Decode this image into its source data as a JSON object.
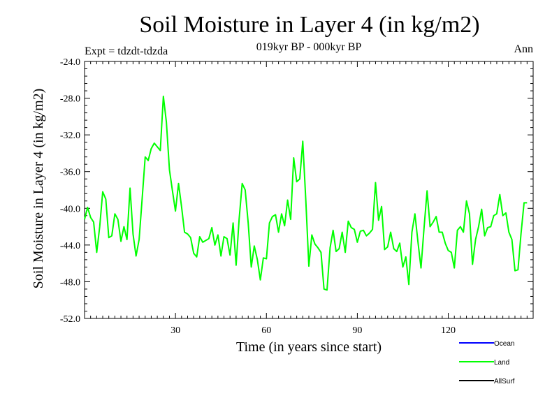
{
  "chart_data": {
    "type": "line",
    "title": "Soil Moisture in Layer 4 (in kg/m2)",
    "subtitle": "019kyr BP - 000kyr BP",
    "left_label": "Expt = tdzdt-tdzda",
    "right_label": "Ann",
    "xlabel": "Time (in years since start)",
    "ylabel": "Soil Moisture in Layer 4 (in kg/m2)",
    "xlim": [
      0,
      148
    ],
    "ylim": [
      -52.0,
      -24.0
    ],
    "x_ticks": [
      30,
      60,
      90,
      120
    ],
    "y_ticks": [
      "-24.0",
      "-28.0",
      "-32.0",
      "-36.0",
      "-40.0",
      "-44.0",
      "-48.0",
      "-52.0"
    ],
    "y_tick_values": [
      -24,
      -28,
      -32,
      -36,
      -40,
      -44,
      -48,
      -52
    ],
    "legend": [
      {
        "name": "Ocean",
        "color": "#0000ff"
      },
      {
        "name": "Land",
        "color": "#00ff00"
      },
      {
        "name": "AllSurf",
        "color": "#000000"
      }
    ],
    "series": [
      {
        "name": "Land",
        "color": "#00ff00",
        "x_start": 0,
        "x_step": 1,
        "values": [
          -41.2,
          -39.9,
          -41.0,
          -41.5,
          -44.8,
          -42.0,
          -38.2,
          -39.0,
          -43.2,
          -43.0,
          -40.6,
          -41.2,
          -43.6,
          -42.0,
          -43.4,
          -37.8,
          -42.8,
          -45.2,
          -43.4,
          -39.0,
          -34.4,
          -34.8,
          -33.5,
          -32.9,
          -33.3,
          -33.7,
          -27.8,
          -30.6,
          -35.8,
          -38.1,
          -40.3,
          -37.3,
          -39.8,
          -42.6,
          -42.8,
          -43.2,
          -44.9,
          -45.3,
          -43.1,
          -43.7,
          -43.5,
          -43.3,
          -42.1,
          -44.0,
          -42.9,
          -45.2,
          -43.1,
          -43.3,
          -45.1,
          -41.6,
          -46.2,
          -41.2,
          -37.3,
          -38.0,
          -41.6,
          -46.4,
          -44.1,
          -45.6,
          -47.8,
          -45.4,
          -45.5,
          -41.6,
          -40.9,
          -40.7,
          -42.6,
          -40.6,
          -41.9,
          -39.1,
          -41.2,
          -34.5,
          -37.1,
          -36.8,
          -32.7,
          -39.2,
          -46.3,
          -42.9,
          -43.9,
          -44.3,
          -44.8,
          -48.8,
          -48.9,
          -44.3,
          -42.4,
          -44.7,
          -44.4,
          -42.6,
          -44.8,
          -41.4,
          -42.1,
          -42.3,
          -43.7,
          -42.5,
          -42.4,
          -43.0,
          -42.7,
          -42.3,
          -37.2,
          -41.3,
          -39.8,
          -44.5,
          -44.2,
          -42.6,
          -44.4,
          -44.7,
          -43.8,
          -46.4,
          -45.3,
          -48.3,
          -42.6,
          -40.6,
          -43.7,
          -46.5,
          -42.2,
          -38.1,
          -42.0,
          -41.5,
          -40.9,
          -42.6,
          -42.6,
          -43.8,
          -44.6,
          -44.8,
          -46.5,
          -42.4,
          -42.0,
          -42.6,
          -39.2,
          -40.6,
          -46.1,
          -43.4,
          -42.0,
          -40.1,
          -43.0,
          -42.1,
          -42.0,
          -40.8,
          -40.6,
          -38.5,
          -40.8,
          -40.5,
          -42.6,
          -43.4,
          -46.8,
          -46.7,
          -42.8,
          -39.4,
          -39.4
        ]
      }
    ]
  }
}
